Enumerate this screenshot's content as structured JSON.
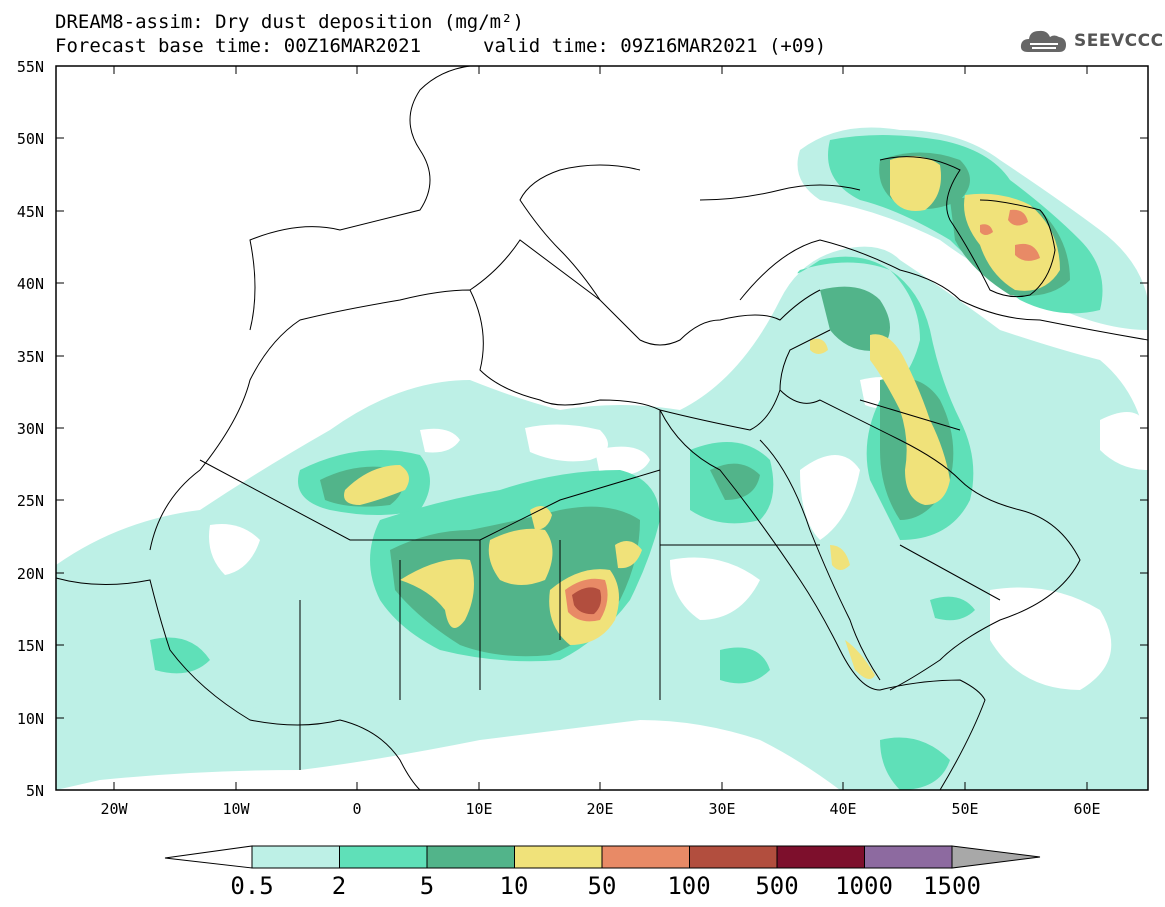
{
  "title": {
    "line1": "DREAM8-assim: Dry dust deposition (mg/m²)",
    "line2_left": "Forecast base time: 00Z16MAR2021",
    "line2_right": "valid time: 09Z16MAR2021 (+09)"
  },
  "logo": {
    "icon": "cloud-icon",
    "text": "SEEVCCC"
  },
  "axes": {
    "lat_labels": [
      "55N",
      "50N",
      "45N",
      "40N",
      "35N",
      "30N",
      "25N",
      "20N",
      "15N",
      "10N",
      "5N"
    ],
    "lon_labels": [
      "20W",
      "10W",
      "0",
      "10E",
      "20E",
      "30E",
      "40E",
      "50E",
      "60E"
    ],
    "lat_range": [
      5,
      55
    ],
    "lon_range": [
      -25,
      65
    ]
  },
  "colorbar": {
    "labels": [
      "0.5",
      "2",
      "5",
      "10",
      "50",
      "100",
      "500",
      "1000",
      "1500"
    ],
    "colors": [
      "#bdf0e6",
      "#5fe0b8",
      "#52b48a",
      "#f0e27a",
      "#e88a66",
      "#b24e3e",
      "#7d0f2c",
      "#8d6aa0"
    ],
    "under_color": "#ffffff",
    "over_color": "#a8a8a8"
  }
}
